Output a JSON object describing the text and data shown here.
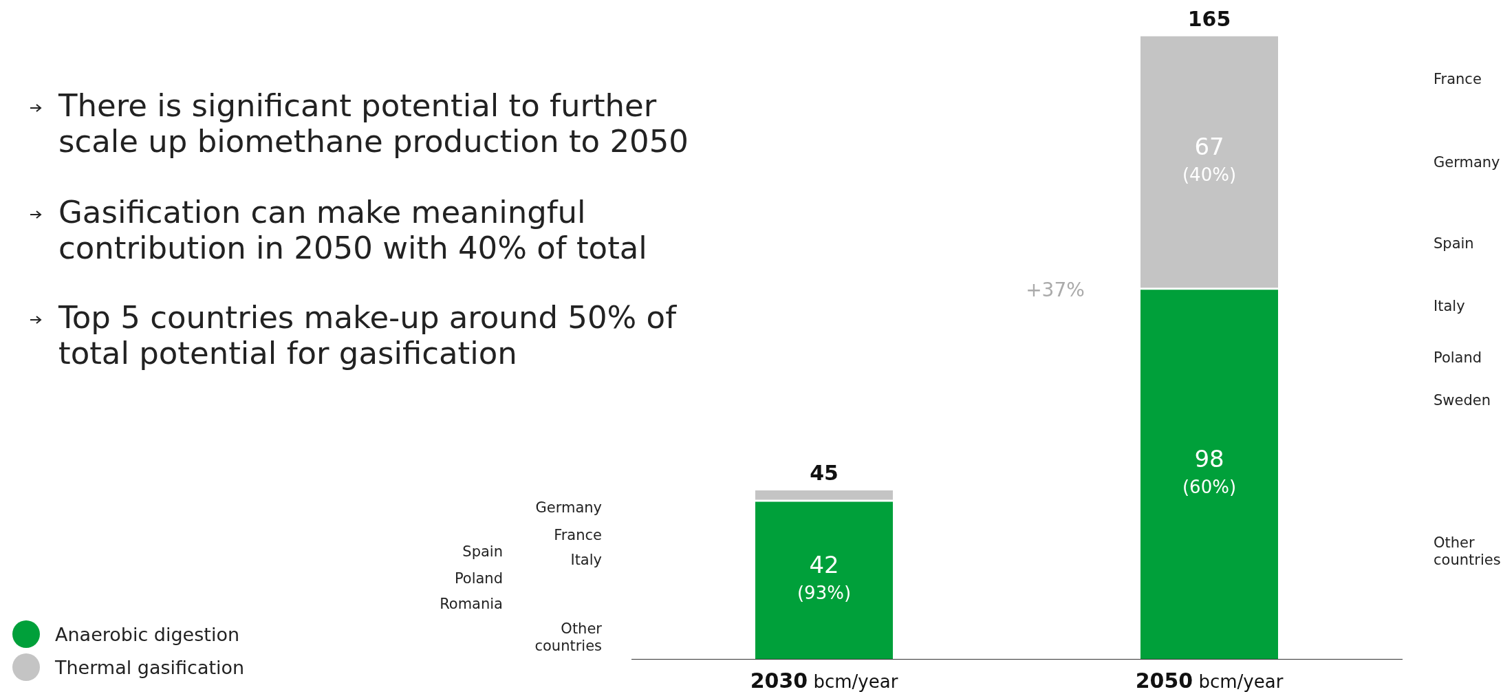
{
  "chart_data": {
    "type": "bar",
    "stacked": true,
    "categories": [
      "2030",
      "2050"
    ],
    "xlabel": "bcm/year",
    "legend": "bottom left",
    "grid": false,
    "series": [
      {
        "name": "Anaerobic digestion",
        "color": "#00a03a",
        "values": [
          42,
          98
        ],
        "value_labels": [
          "42\n(93%)",
          "98\n(60%)"
        ]
      },
      {
        "name": "Thermal gasification",
        "color": "#c4c4c4",
        "values": [
          3,
          67
        ],
        "value_labels": [
          null,
          "67\n(40%)"
        ]
      }
    ],
    "totals": [
      "45",
      "165"
    ],
    "annotations": [
      "There is significant potential to further scale up biomethane production to 2050",
      "Gasification can make meaningful contribution in 2050 with 40% of total",
      "Top 5 countries make-up around 50% of total potential for gasification",
      "+37%",
      "Germany",
      "France",
      "Spain",
      "Italy",
      "Poland",
      "Romania",
      "Other countries",
      "France",
      "Germany",
      "Spain",
      "Italy",
      "Poland",
      "Sweden",
      "Other countries"
    ]
  }
}
